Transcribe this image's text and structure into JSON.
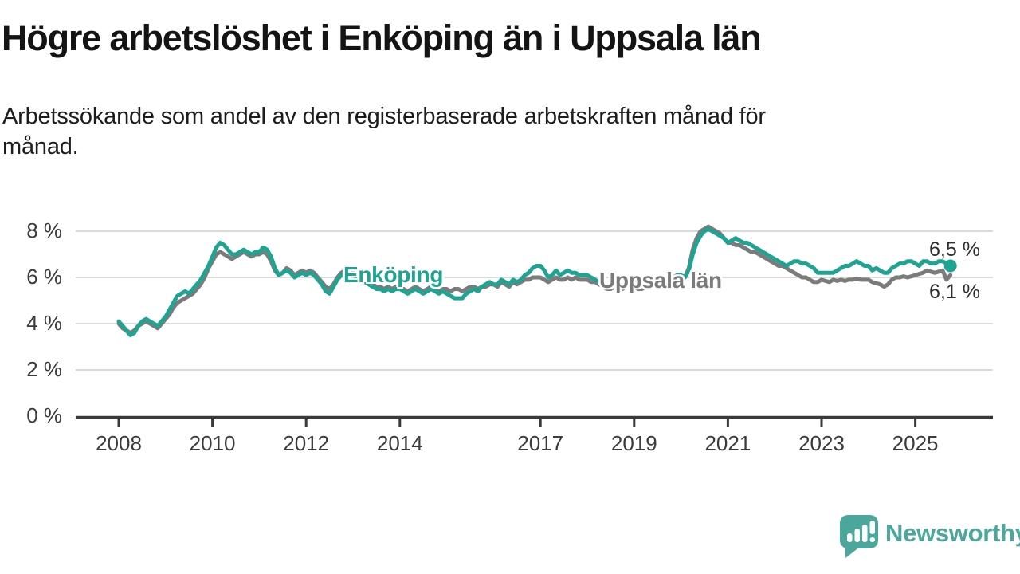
{
  "header": {
    "title": "Högre arbetslöshet i Enköping än i Uppsala län",
    "subtitle": "Arbetssökande som andel av den registerbaserade arbetskraften månad för\nmånad."
  },
  "chart_data": {
    "type": "line",
    "title": "Högre arbetslöshet i Enköping än i Uppsala län",
    "subtitle": "Arbetssökande som andel av den registerbaserade arbetskraften månad för månad.",
    "unit": "%",
    "x_start_year": 2008,
    "points_per_month": 1,
    "x_ticks": [
      2008,
      2010,
      2012,
      2014,
      2017,
      2019,
      2021,
      2023,
      2025
    ],
    "x_tick_labels": [
      "2008",
      "2010",
      "2012",
      "2014",
      "2017",
      "2019",
      "2021",
      "2023",
      "2025"
    ],
    "y_ticks": [
      0,
      2,
      4,
      6,
      8
    ],
    "y_tick_labels": [
      "0 %",
      "2 %",
      "4 %",
      "6 %",
      "8 %"
    ],
    "ylim": [
      0,
      8.6
    ],
    "grid": "horizontal",
    "legend_position": "inline-labels",
    "series": [
      {
        "name": "Uppsala län",
        "color": "#7B7B7B",
        "end_label": "6,1 %",
        "end_dot": false,
        "values": [
          4.0,
          3.8,
          3.7,
          3.6,
          3.7,
          3.9,
          4.0,
          4.1,
          4.0,
          3.9,
          3.8,
          4.0,
          4.2,
          4.4,
          4.7,
          4.9,
          5.0,
          5.1,
          5.2,
          5.3,
          5.5,
          5.7,
          6.0,
          6.4,
          6.7,
          7.0,
          7.1,
          7.0,
          6.9,
          6.8,
          6.9,
          7.0,
          7.1,
          7.0,
          6.9,
          7.0,
          7.0,
          7.1,
          7.0,
          6.7,
          6.3,
          6.1,
          6.2,
          6.4,
          6.3,
          6.1,
          6.2,
          6.3,
          6.2,
          6.3,
          6.2,
          6.0,
          5.8,
          5.6,
          5.5,
          5.7,
          6.0,
          6.2,
          6.3,
          6.3,
          6.2,
          6.1,
          6.0,
          5.9,
          5.8,
          5.7,
          5.6,
          5.6,
          5.5,
          5.6,
          5.5,
          5.6,
          5.6,
          5.5,
          5.4,
          5.5,
          5.6,
          5.5,
          5.4,
          5.5,
          5.6,
          5.5,
          5.4,
          5.5,
          5.5,
          5.4,
          5.5,
          5.5,
          5.4,
          5.5,
          5.6,
          5.6,
          5.5,
          5.6,
          5.6,
          5.7,
          5.7,
          5.6,
          5.8,
          5.7,
          5.6,
          5.8,
          5.7,
          5.8,
          5.9,
          5.9,
          6.0,
          6.0,
          6.0,
          5.9,
          5.8,
          5.9,
          6.0,
          5.9,
          5.9,
          6.0,
          5.9,
          6.0,
          5.9,
          5.9,
          5.9,
          5.8,
          5.8,
          5.7,
          5.6,
          5.5,
          5.5,
          5.6,
          5.5,
          5.5,
          5.6,
          5.6,
          5.6,
          5.5,
          5.5,
          5.6,
          5.7,
          5.7,
          5.8,
          5.8,
          5.9,
          5.9,
          6.0,
          6.0,
          6.0,
          6.0,
          6.4,
          7.2,
          7.7,
          8.0,
          8.1,
          8.2,
          8.1,
          8.0,
          7.9,
          7.7,
          7.5,
          7.5,
          7.4,
          7.4,
          7.3,
          7.2,
          7.1,
          7.1,
          7.0,
          6.9,
          6.8,
          6.7,
          6.6,
          6.5,
          6.5,
          6.4,
          6.3,
          6.2,
          6.1,
          6.0,
          6.0,
          5.9,
          5.8,
          5.8,
          5.9,
          5.85,
          5.8,
          5.9,
          5.85,
          5.9,
          5.85,
          5.9,
          5.9,
          5.95,
          5.9,
          5.9,
          5.9,
          5.8,
          5.75,
          5.7,
          5.6,
          5.7,
          5.9,
          6.0,
          6.0,
          6.05,
          6.0,
          6.05,
          6.1,
          6.15,
          6.2,
          6.3,
          6.25,
          6.2,
          6.25,
          6.3,
          5.9,
          6.1
        ]
      },
      {
        "name": "Enköping",
        "color": "#1FA392",
        "end_label": "6,5 %",
        "end_dot": true,
        "values": [
          4.1,
          3.9,
          3.7,
          3.5,
          3.6,
          3.9,
          4.1,
          4.2,
          4.1,
          4.0,
          3.9,
          4.1,
          4.3,
          4.6,
          4.9,
          5.2,
          5.3,
          5.4,
          5.3,
          5.5,
          5.7,
          5.9,
          6.2,
          6.5,
          6.9,
          7.3,
          7.5,
          7.4,
          7.2,
          7.0,
          7.0,
          7.1,
          7.2,
          7.1,
          7.0,
          7.1,
          7.1,
          7.3,
          7.2,
          6.9,
          6.4,
          6.1,
          6.2,
          6.3,
          6.2,
          6.0,
          6.1,
          6.2,
          6.1,
          6.2,
          6.1,
          5.9,
          5.7,
          5.4,
          5.3,
          5.6,
          5.9,
          6.1,
          6.2,
          6.2,
          6.1,
          6.0,
          5.9,
          5.8,
          5.7,
          5.6,
          5.5,
          5.5,
          5.4,
          5.5,
          5.4,
          5.5,
          5.5,
          5.4,
          5.3,
          5.4,
          5.5,
          5.4,
          5.3,
          5.4,
          5.5,
          5.4,
          5.3,
          5.4,
          5.3,
          5.2,
          5.1,
          5.1,
          5.1,
          5.3,
          5.4,
          5.5,
          5.4,
          5.6,
          5.7,
          5.8,
          5.7,
          5.7,
          5.9,
          5.8,
          5.7,
          5.9,
          5.8,
          5.9,
          6.1,
          6.2,
          6.4,
          6.5,
          6.5,
          6.3,
          6.0,
          6.1,
          6.3,
          6.1,
          6.2,
          6.3,
          6.2,
          6.2,
          6.1,
          6.1,
          6.1,
          6.0,
          5.9,
          5.8,
          5.7,
          5.6,
          5.6,
          5.7,
          5.6,
          5.7,
          5.8,
          5.8,
          5.8,
          5.7,
          5.6,
          5.7,
          5.8,
          5.9,
          5.8,
          5.9,
          6.0,
          5.9,
          6.0,
          6.1,
          6.1,
          6.0,
          6.3,
          7.0,
          7.5,
          7.8,
          8.0,
          8.1,
          8.0,
          7.9,
          7.8,
          7.7,
          7.5,
          7.6,
          7.7,
          7.6,
          7.5,
          7.5,
          7.4,
          7.3,
          7.2,
          7.1,
          7.0,
          6.9,
          6.8,
          6.7,
          6.6,
          6.5,
          6.6,
          6.7,
          6.7,
          6.6,
          6.6,
          6.5,
          6.4,
          6.2,
          6.2,
          6.2,
          6.2,
          6.2,
          6.3,
          6.4,
          6.5,
          6.5,
          6.6,
          6.7,
          6.6,
          6.5,
          6.5,
          6.3,
          6.4,
          6.3,
          6.2,
          6.2,
          6.4,
          6.5,
          6.6,
          6.6,
          6.7,
          6.7,
          6.6,
          6.5,
          6.7,
          6.7,
          6.6,
          6.6,
          6.7,
          6.7,
          6.6,
          6.5
        ]
      }
    ]
  },
  "footer": {
    "brand": "Newsworthy"
  }
}
